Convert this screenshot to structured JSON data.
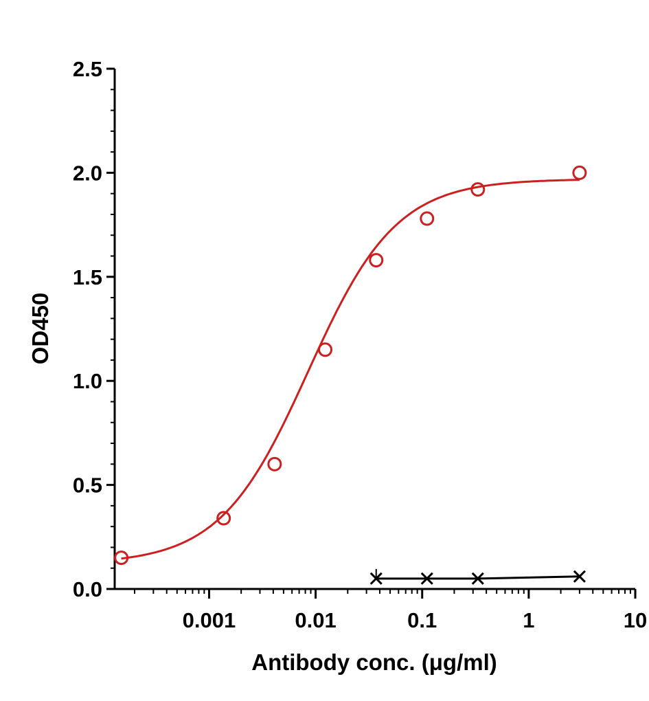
{
  "chart_data": {
    "type": "scatter",
    "title": "",
    "xlabel": "Antibody conc. (μg/ml)",
    "ylabel": "OD450",
    "xscale": "log",
    "xlim": [
      0.00013,
      10
    ],
    "ylim": [
      0,
      2.5
    ],
    "x_ticks": [
      {
        "value": 0.001,
        "label": "0.001"
      },
      {
        "value": 0.01,
        "label": "0.01"
      },
      {
        "value": 0.1,
        "label": "0.1"
      },
      {
        "value": 1,
        "label": "1"
      },
      {
        "value": 10,
        "label": "10"
      }
    ],
    "y_ticks": [
      {
        "value": 0,
        "label": "0.0"
      },
      {
        "value": 0.5,
        "label": "0.5"
      },
      {
        "value": 1.0,
        "label": "1.0"
      },
      {
        "value": 1.5,
        "label": "1.5"
      },
      {
        "value": 2.0,
        "label": "2.0"
      },
      {
        "value": 2.5,
        "label": "2.5"
      }
    ],
    "grid": false,
    "legend": "none",
    "series": [
      {
        "marker": "circle",
        "color": "#cc1f1f",
        "fit": "4PL",
        "x": [
          0.00015,
          0.00137,
          0.00412,
          0.0123,
          0.037,
          0.111,
          0.333,
          3.0
        ],
        "y": [
          0.15,
          0.34,
          0.6,
          1.15,
          1.58,
          1.78,
          1.92,
          2.0
        ]
      },
      {
        "marker": "x",
        "color": "#000000",
        "fit": "line",
        "x": [
          0.037,
          0.111,
          0.333,
          3.0
        ],
        "y": [
          0.05,
          0.05,
          0.05,
          0.06
        ]
      }
    ]
  }
}
